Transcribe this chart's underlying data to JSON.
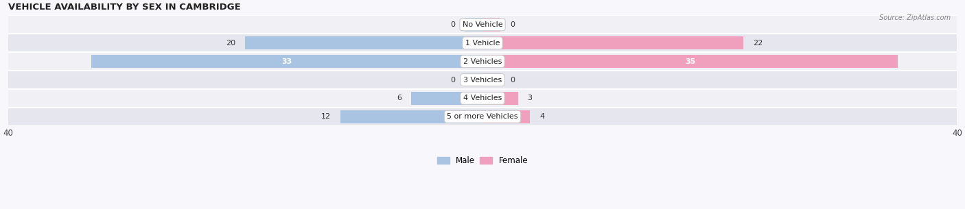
{
  "title": "VEHICLE AVAILABILITY BY SEX IN CAMBRIDGE",
  "source": "Source: ZipAtlas.com",
  "categories": [
    "No Vehicle",
    "1 Vehicle",
    "2 Vehicles",
    "3 Vehicles",
    "4 Vehicles",
    "5 or more Vehicles"
  ],
  "male_values": [
    0,
    20,
    33,
    0,
    6,
    12
  ],
  "female_values": [
    0,
    22,
    35,
    0,
    3,
    4
  ],
  "male_color": "#a8c4e2",
  "female_color": "#f0a0bc",
  "male_label": "Male",
  "female_label": "Female",
  "axis_max": 40,
  "row_bg_even": "#f0f0f5",
  "row_bg_odd": "#e6e6ee",
  "fig_bg": "#f8f8fc",
  "title_fontsize": 9.5,
  "value_fontsize": 8,
  "cat_fontsize": 8
}
